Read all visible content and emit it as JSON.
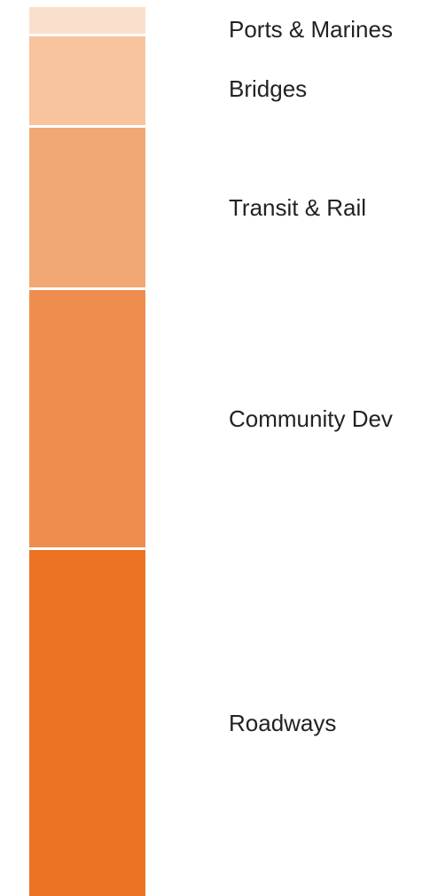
{
  "chart_data": {
    "type": "bar",
    "orientation": "stacked-vertical",
    "title": "",
    "xlabel": "",
    "ylabel": "",
    "legend": "none",
    "grid": false,
    "categories": [
      "Roadways",
      "Community Dev",
      "Transit & Rail",
      "Bridges",
      "Ports & Marines"
    ],
    "values": [
      39,
      29,
      18,
      10,
      3
    ],
    "colors": [
      "#ec7224",
      "#ef8d4e",
      "#f2a872",
      "#f7c49e",
      "#fae0cc"
    ]
  }
}
